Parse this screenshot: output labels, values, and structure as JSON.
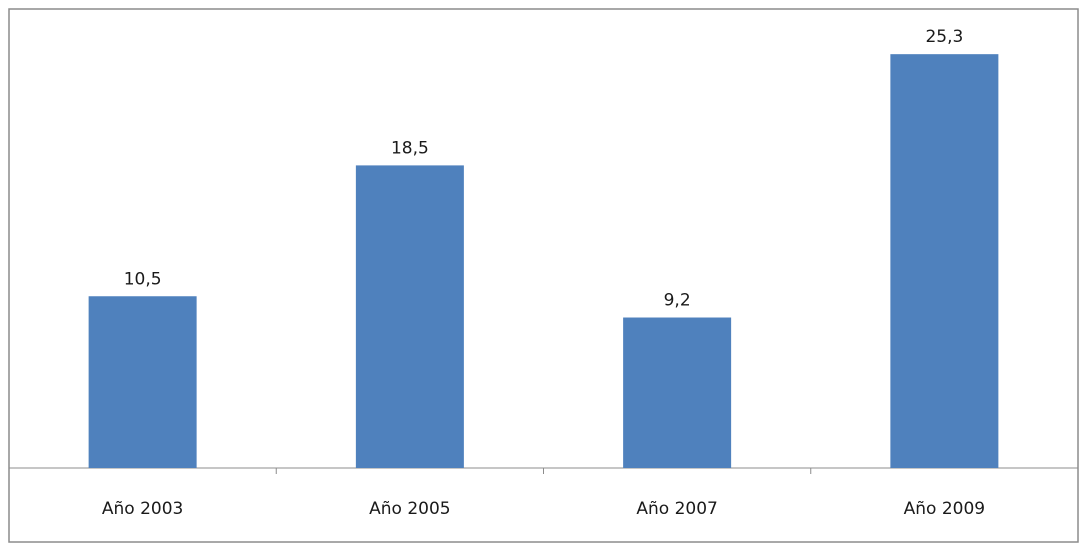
{
  "chart_data": {
    "type": "bar",
    "title": "",
    "xlabel": "",
    "ylabel": "",
    "categories": [
      "Año 2003",
      "Año 2005",
      "Año 2007",
      "Año 2009"
    ],
    "values": [
      10.5,
      18.5,
      9.2,
      25.3
    ],
    "value_labels": [
      "10,5",
      "18,5",
      "9,2",
      "25,3"
    ],
    "ylim": [
      0,
      28
    ],
    "grid": false,
    "legend": "none",
    "bar_color": "#4f81bd"
  }
}
